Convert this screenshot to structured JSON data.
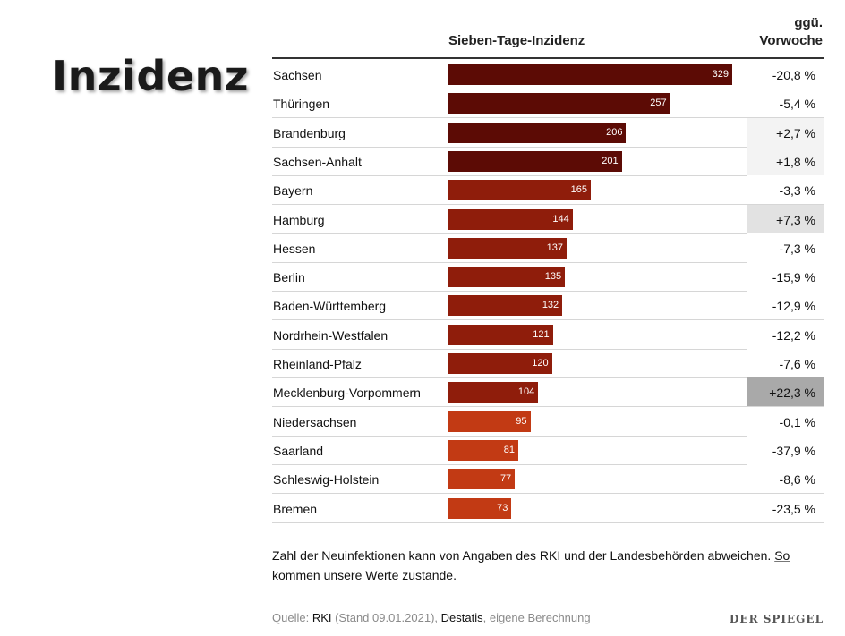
{
  "slide_title": "Inzidenz",
  "chart_data": {
    "type": "table",
    "column_headers": {
      "bar": "Sieben-Tage-Inzidenz",
      "change_line1": "ggü.",
      "change_line2": "Vorwoche"
    },
    "rows": [
      {
        "state": "Sachsen",
        "value": 329,
        "change": "-20,8 %",
        "highlight": "none"
      },
      {
        "state": "Thüringen",
        "value": 257,
        "change": "-5,4 %",
        "highlight": "none"
      },
      {
        "state": "Brandenburg",
        "value": 206,
        "change": "+2,7 %",
        "highlight": "light"
      },
      {
        "state": "Sachsen-Anhalt",
        "value": 201,
        "change": "+1,8 %",
        "highlight": "light"
      },
      {
        "state": "Bayern",
        "value": 165,
        "change": "-3,3 %",
        "highlight": "none"
      },
      {
        "state": "Hamburg",
        "value": 144,
        "change": "+7,3 %",
        "highlight": "medium"
      },
      {
        "state": "Hessen",
        "value": 137,
        "change": "-7,3 %",
        "highlight": "none"
      },
      {
        "state": "Berlin",
        "value": 135,
        "change": "-15,9 %",
        "highlight": "none"
      },
      {
        "state": "Baden-Württemberg",
        "value": 132,
        "change": "-12,9 %",
        "highlight": "none"
      },
      {
        "state": "Nordrhein-Westfalen",
        "value": 121,
        "change": "-12,2 %",
        "highlight": "none"
      },
      {
        "state": "Rheinland-Pfalz",
        "value": 120,
        "change": "-7,6 %",
        "highlight": "none"
      },
      {
        "state": "Mecklenburg-Vorpommern",
        "value": 104,
        "change": "+22,3 %",
        "highlight": "dark"
      },
      {
        "state": "Niedersachsen",
        "value": 95,
        "change": "-0,1 %",
        "highlight": "none"
      },
      {
        "state": "Saarland",
        "value": 81,
        "change": "-37,9 %",
        "highlight": "none"
      },
      {
        "state": "Schleswig-Holstein",
        "value": 77,
        "change": "-8,6 %",
        "highlight": "none"
      },
      {
        "state": "Bremen",
        "value": 73,
        "change": "-23,5 %",
        "highlight": "none"
      }
    ],
    "bar_colors": {
      "above_200": "#5c0b05",
      "above_100": "#8f1d0b",
      "below_100": "#c23a14"
    },
    "highlight_colors": {
      "none": "#ffffff",
      "light": "#f3f3f3",
      "medium": "#e2e2e2",
      "dark": "#a9a9a9"
    },
    "xlim": [
      0,
      329
    ]
  },
  "footnote": {
    "text": "Zahl der Neuinfektionen kann von Angaben des RKI und der Landesbehörden abweichen. ",
    "link": "So kommen unsere Werte zustande",
    "end": "."
  },
  "source": {
    "prefix": "Quelle: ",
    "rki": "RKI",
    "stand": " (Stand 09.01.2021), ",
    "destatis": "Destatis",
    "suffix": ", eigene Berechnung"
  },
  "brand": "DER SPIEGEL"
}
